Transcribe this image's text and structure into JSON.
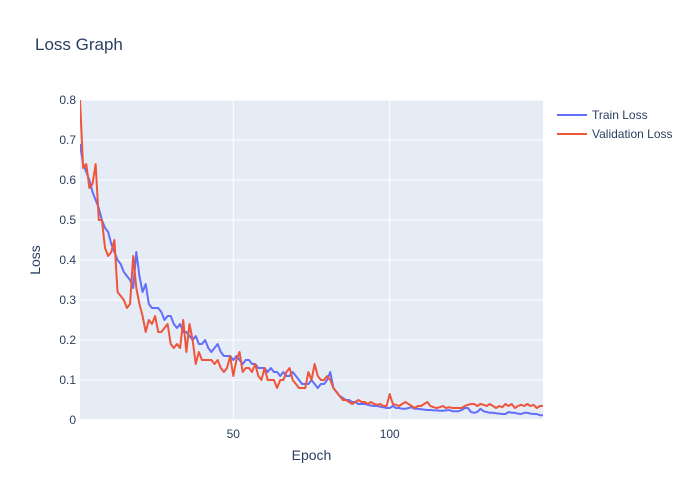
{
  "chart_data": {
    "type": "line",
    "title": "Loss Graph",
    "xlabel": "Epoch",
    "ylabel": "Loss",
    "xlim": [
      1,
      149
    ],
    "ylim": [
      0,
      0.8
    ],
    "x_ticks": [
      50,
      100
    ],
    "y_ticks": [
      0,
      0.1,
      0.2,
      0.3,
      0.4,
      0.5,
      0.6,
      0.7,
      0.8
    ],
    "grid": true,
    "legend_position": "top-right",
    "plot_background": "#e5ecf6",
    "series": [
      {
        "name": "Train Loss",
        "color": "#636efa",
        "x": [
          1,
          2,
          3,
          4,
          5,
          6,
          7,
          8,
          9,
          10,
          11,
          12,
          13,
          14,
          15,
          16,
          17,
          18,
          19,
          20,
          21,
          22,
          23,
          24,
          25,
          26,
          27,
          28,
          29,
          30,
          31,
          32,
          33,
          34,
          35,
          36,
          37,
          38,
          39,
          40,
          41,
          42,
          43,
          44,
          45,
          46,
          47,
          48,
          49,
          50,
          51,
          52,
          53,
          54,
          55,
          56,
          57,
          58,
          59,
          60,
          61,
          62,
          63,
          64,
          65,
          66,
          67,
          68,
          69,
          70,
          71,
          72,
          73,
          74,
          75,
          76,
          77,
          78,
          79,
          80,
          81,
          82,
          83,
          84,
          85,
          86,
          87,
          88,
          89,
          90,
          91,
          92,
          93,
          94,
          95,
          96,
          97,
          98,
          99,
          100,
          101,
          102,
          103,
          104,
          105,
          106,
          107,
          108,
          109,
          110,
          111,
          112,
          113,
          114,
          115,
          116,
          117,
          118,
          119,
          120,
          121,
          122,
          123,
          124,
          125,
          126,
          127,
          128,
          129,
          130,
          131,
          132,
          133,
          134,
          135,
          136,
          137,
          138,
          139,
          140,
          141,
          142,
          143,
          144,
          145,
          146,
          147,
          148,
          149
        ],
        "y": [
          0.69,
          0.64,
          0.62,
          0.6,
          0.57,
          0.55,
          0.53,
          0.5,
          0.48,
          0.47,
          0.44,
          0.42,
          0.4,
          0.39,
          0.37,
          0.36,
          0.35,
          0.33,
          0.42,
          0.36,
          0.32,
          0.34,
          0.29,
          0.28,
          0.28,
          0.28,
          0.27,
          0.25,
          0.26,
          0.26,
          0.24,
          0.23,
          0.24,
          0.22,
          0.22,
          0.21,
          0.2,
          0.21,
          0.19,
          0.19,
          0.2,
          0.18,
          0.17,
          0.18,
          0.19,
          0.17,
          0.16,
          0.16,
          0.16,
          0.15,
          0.16,
          0.15,
          0.14,
          0.15,
          0.15,
          0.14,
          0.14,
          0.13,
          0.13,
          0.13,
          0.12,
          0.13,
          0.12,
          0.12,
          0.11,
          0.12,
          0.11,
          0.11,
          0.12,
          0.11,
          0.1,
          0.09,
          0.09,
          0.09,
          0.1,
          0.09,
          0.08,
          0.09,
          0.09,
          0.1,
          0.12,
          0.08,
          0.07,
          0.06,
          0.055,
          0.05,
          0.05,
          0.045,
          0.045,
          0.04,
          0.04,
          0.04,
          0.038,
          0.036,
          0.035,
          0.035,
          0.033,
          0.032,
          0.03,
          0.03,
          0.035,
          0.03,
          0.03,
          0.028,
          0.028,
          0.03,
          0.032,
          0.028,
          0.028,
          0.027,
          0.026,
          0.025,
          0.025,
          0.024,
          0.024,
          0.023,
          0.023,
          0.024,
          0.025,
          0.022,
          0.022,
          0.022,
          0.025,
          0.03,
          0.03,
          0.02,
          0.018,
          0.02,
          0.028,
          0.022,
          0.02,
          0.018,
          0.018,
          0.017,
          0.016,
          0.015,
          0.015,
          0.02,
          0.018,
          0.018,
          0.016,
          0.015,
          0.018,
          0.018,
          0.016,
          0.015,
          0.015,
          0.012,
          0.012
        ]
      },
      {
        "name": "Validation Loss",
        "color": "#ef553b",
        "x": [
          1,
          2,
          3,
          4,
          5,
          6,
          7,
          8,
          9,
          10,
          11,
          12,
          13,
          14,
          15,
          16,
          17,
          18,
          19,
          20,
          21,
          22,
          23,
          24,
          25,
          26,
          27,
          28,
          29,
          30,
          31,
          32,
          33,
          34,
          35,
          36,
          37,
          38,
          39,
          40,
          41,
          42,
          43,
          44,
          45,
          46,
          47,
          48,
          49,
          50,
          51,
          52,
          53,
          54,
          55,
          56,
          57,
          58,
          59,
          60,
          61,
          62,
          63,
          64,
          65,
          66,
          67,
          68,
          69,
          70,
          71,
          72,
          73,
          74,
          75,
          76,
          77,
          78,
          79,
          80,
          81,
          82,
          83,
          84,
          85,
          86,
          87,
          88,
          89,
          90,
          91,
          92,
          93,
          94,
          95,
          96,
          97,
          98,
          99,
          100,
          101,
          102,
          103,
          104,
          105,
          106,
          107,
          108,
          109,
          110,
          111,
          112,
          113,
          114,
          115,
          116,
          117,
          118,
          119,
          120,
          121,
          122,
          123,
          124,
          125,
          126,
          127,
          128,
          129,
          130,
          131,
          132,
          133,
          134,
          135,
          136,
          137,
          138,
          139,
          140,
          141,
          142,
          143,
          144,
          145,
          146,
          147,
          148,
          149
        ],
        "y": [
          0.8,
          0.63,
          0.64,
          0.58,
          0.59,
          0.64,
          0.5,
          0.5,
          0.43,
          0.41,
          0.42,
          0.45,
          0.32,
          0.31,
          0.3,
          0.28,
          0.29,
          0.41,
          0.33,
          0.29,
          0.26,
          0.22,
          0.25,
          0.24,
          0.26,
          0.22,
          0.22,
          0.23,
          0.24,
          0.19,
          0.18,
          0.19,
          0.18,
          0.25,
          0.17,
          0.24,
          0.2,
          0.14,
          0.17,
          0.15,
          0.15,
          0.15,
          0.15,
          0.14,
          0.15,
          0.13,
          0.12,
          0.13,
          0.16,
          0.11,
          0.15,
          0.17,
          0.12,
          0.13,
          0.13,
          0.12,
          0.14,
          0.11,
          0.1,
          0.13,
          0.1,
          0.1,
          0.1,
          0.08,
          0.1,
          0.1,
          0.12,
          0.13,
          0.1,
          0.09,
          0.08,
          0.08,
          0.08,
          0.12,
          0.1,
          0.14,
          0.11,
          0.1,
          0.1,
          0.11,
          0.1,
          0.08,
          0.07,
          0.06,
          0.05,
          0.05,
          0.045,
          0.04,
          0.045,
          0.05,
          0.045,
          0.045,
          0.04,
          0.045,
          0.04,
          0.038,
          0.04,
          0.035,
          0.035,
          0.065,
          0.04,
          0.038,
          0.035,
          0.04,
          0.045,
          0.04,
          0.035,
          0.03,
          0.035,
          0.035,
          0.04,
          0.045,
          0.035,
          0.032,
          0.03,
          0.032,
          0.035,
          0.03,
          0.032,
          0.03,
          0.03,
          0.03,
          0.03,
          0.035,
          0.038,
          0.04,
          0.04,
          0.035,
          0.04,
          0.038,
          0.035,
          0.04,
          0.035,
          0.03,
          0.035,
          0.032,
          0.04,
          0.035,
          0.04,
          0.03,
          0.035,
          0.038,
          0.035,
          0.04,
          0.035,
          0.038,
          0.03,
          0.035,
          0.035
        ]
      }
    ]
  }
}
